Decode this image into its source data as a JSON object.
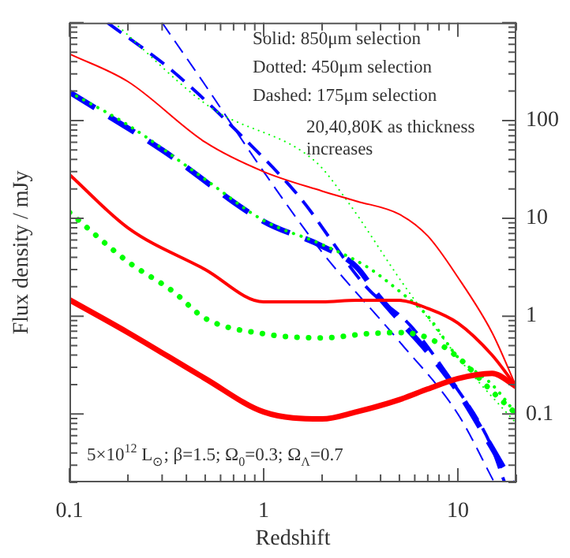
{
  "chart_data": {
    "type": "line",
    "xlabel": "Redshift",
    "ylabel": "Flux density / mJy",
    "log": "xy",
    "xlim": [
      0.1,
      20
    ],
    "xticks": [
      0.1,
      1,
      10
    ],
    "ylim": [
      0.02,
      1000
    ],
    "yticks": [
      0.1,
      1,
      10,
      100
    ],
    "grid": false,
    "legend": false,
    "marker": "none",
    "annotations": [
      "Solid: 850μm selection",
      "Dotted: 450μm selection",
      "Dashed: 175μm selection",
      "20,40,80K as thickness increases",
      "5×10$^{12}$ L$_{⊙}$; β=1.5; Ω$_{0}$=0.3; Ω$_{Λ}$=0.7"
    ],
    "series": [
      {
        "color": "#ff0000",
        "line_style": "solid",
        "x": [
          0.1,
          0.2,
          0.5,
          1,
          2,
          3,
          5,
          7,
          10,
          15,
          20
        ],
        "values": [
          480,
          250,
          60,
          30,
          19,
          15,
          11,
          6.6,
          2.5,
          0.68,
          0.19
        ]
      },
      {
        "color": "#ff0000",
        "line_style": "solid",
        "x": [
          0.1,
          0.2,
          0.5,
          1,
          2,
          3,
          5,
          7,
          10,
          15,
          20
        ],
        "values": [
          28,
          8,
          3,
          1.4,
          1.4,
          1.45,
          1.45,
          1.2,
          0.85,
          0.4,
          0.19
        ]
      },
      {
        "color": "#ff0000",
        "line_style": "solid",
        "x": [
          0.1,
          0.2,
          0.5,
          1,
          2,
          3,
          5,
          7,
          10,
          15,
          20
        ],
        "values": [
          1.47,
          0.68,
          0.23,
          0.105,
          0.089,
          0.105,
          0.14,
          0.18,
          0.23,
          0.26,
          0.19
        ]
      },
      {
        "color": "#00ff00",
        "line_style": "dotted",
        "x": [
          0.17,
          0.53,
          1.85,
          2.6,
          5.4,
          10.6,
          20
        ],
        "values": [
          1000,
          137,
          38,
          16.6,
          1.95,
          0.33,
          0.08
        ]
      },
      {
        "color": "#00ff00",
        "line_style": "dotted",
        "x": [
          0.1,
          0.2,
          0.5,
          1,
          2,
          3.4,
          5,
          7,
          10,
          15,
          20
        ],
        "values": [
          195,
          90,
          25,
          9.5,
          5.4,
          3.2,
          1.8,
          1,
          0.38,
          0.2,
          0.1
        ]
      },
      {
        "color": "#00ff00",
        "line_style": "dotted",
        "x": [
          0.1,
          0.2,
          0.34,
          0.5,
          1,
          2,
          3.4,
          5,
          7,
          10,
          15,
          20
        ],
        "values": [
          11.5,
          3.6,
          1.8,
          0.95,
          0.66,
          0.6,
          0.66,
          0.68,
          0.6,
          0.38,
          0.17,
          0.1
        ]
      },
      {
        "color": "#0000ff",
        "line_style": "dashed",
        "x": [
          0.3,
          0.5,
          1,
          2,
          5,
          10,
          15.4
        ],
        "values": [
          1000,
          230,
          30,
          4.5,
          0.55,
          0.1,
          0.02
        ]
      },
      {
        "color": "#0000ff",
        "line_style": "dashed",
        "x": [
          0.157,
          0.34,
          0.83,
          1.53,
          3.4,
          5.7,
          9.4,
          14.6,
          17.4
        ],
        "values": [
          1000,
          320,
          60,
          16.5,
          1.96,
          0.8,
          0.21,
          0.051,
          0.02
        ]
      },
      {
        "color": "#0000ff",
        "line_style": "dashed",
        "x": [
          0.1,
          0.3,
          1,
          2,
          3,
          3.9,
          5.3,
          7,
          10,
          15,
          19
        ],
        "values": [
          195,
          50,
          9.3,
          5.2,
          3.2,
          1.6,
          0.8,
          0.43,
          0.17,
          0.045,
          0.02
        ]
      }
    ]
  }
}
